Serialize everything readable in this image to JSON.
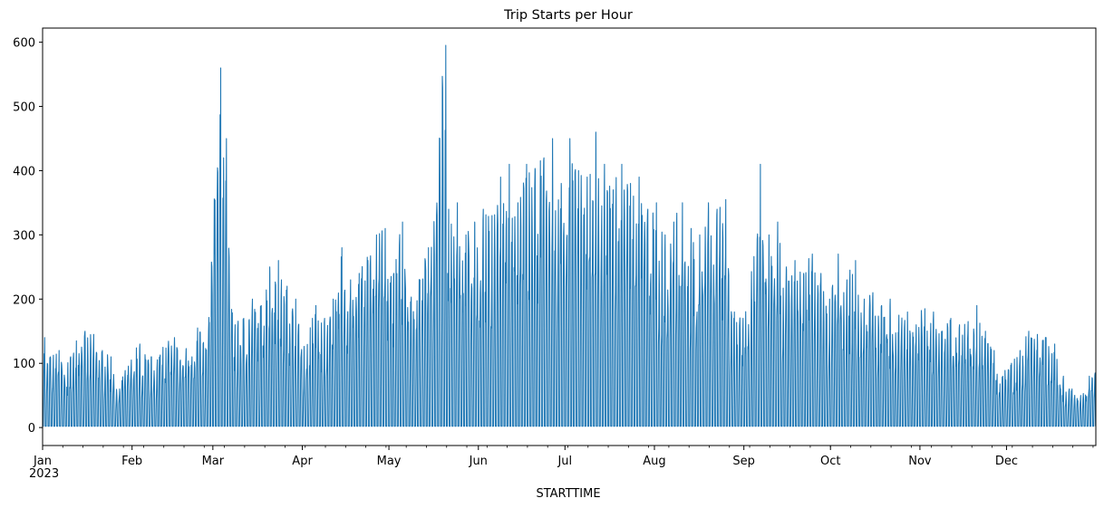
{
  "chart_data": {
    "type": "line",
    "title": "Trip Starts per Hour",
    "xlabel": "STARTTIME",
    "ylabel": "",
    "x_range": [
      "2023-01-01",
      "2023-12-31"
    ],
    "x_ticks": [
      {
        "label": "Jan",
        "date": "2023-01-01"
      },
      {
        "label": "Feb",
        "date": "2023-02-01"
      },
      {
        "label": "Mar",
        "date": "2023-03-01"
      },
      {
        "label": "Apr",
        "date": "2023-04-01"
      },
      {
        "label": "May",
        "date": "2023-05-01"
      },
      {
        "label": "Jun",
        "date": "2023-06-01"
      },
      {
        "label": "Jul",
        "date": "2023-07-01"
      },
      {
        "label": "Aug",
        "date": "2023-08-01"
      },
      {
        "label": "Sep",
        "date": "2023-09-01"
      },
      {
        "label": "Oct",
        "date": "2023-10-01"
      },
      {
        "label": "Nov",
        "date": "2023-11-01"
      },
      {
        "label": "Dec",
        "date": "2023-12-01"
      }
    ],
    "year_label": "2023",
    "ylim": [
      -28,
      622
    ],
    "y_ticks": [
      0,
      100,
      200,
      300,
      400,
      500,
      600
    ],
    "grid": false,
    "series_color": "#1f77b4",
    "series": [
      {
        "x": [
          "2023-01-01",
          "2023-01-03",
          "2023-01-06",
          "2023-01-09",
          "2023-01-12",
          "2023-01-15",
          "2023-01-18",
          "2023-01-21",
          "2023-01-24",
          "2023-01-27",
          "2023-01-30",
          "2023-02-03",
          "2023-02-07",
          "2023-02-11",
          "2023-02-15",
          "2023-02-19",
          "2023-02-23",
          "2023-02-27",
          "2023-03-03",
          "2023-03-04",
          "2023-03-05",
          "2023-03-08",
          "2023-03-11",
          "2023-03-14",
          "2023-03-17",
          "2023-03-20",
          "2023-03-23",
          "2023-03-26",
          "2023-03-29",
          "2023-04-02",
          "2023-04-05",
          "2023-04-08",
          "2023-04-11",
          "2023-04-14",
          "2023-04-17",
          "2023-04-20",
          "2023-04-23",
          "2023-04-26",
          "2023-04-29",
          "2023-05-02",
          "2023-05-05",
          "2023-05-08",
          "2023-05-11",
          "2023-05-14",
          "2023-05-17",
          "2023-05-20",
          "2023-05-21",
          "2023-05-24",
          "2023-05-27",
          "2023-05-30",
          "2023-06-02",
          "2023-06-05",
          "2023-06-08",
          "2023-06-11",
          "2023-06-14",
          "2023-06-17",
          "2023-06-20",
          "2023-06-23",
          "2023-06-26",
          "2023-06-29",
          "2023-07-02",
          "2023-07-05",
          "2023-07-08",
          "2023-07-11",
          "2023-07-14",
          "2023-07-17",
          "2023-07-20",
          "2023-07-23",
          "2023-07-26",
          "2023-07-29",
          "2023-08-01",
          "2023-08-04",
          "2023-08-07",
          "2023-08-10",
          "2023-08-13",
          "2023-08-16",
          "2023-08-19",
          "2023-08-22",
          "2023-08-25",
          "2023-08-28",
          "2023-08-31",
          "2023-09-03",
          "2023-09-06",
          "2023-09-09",
          "2023-09-12",
          "2023-09-15",
          "2023-09-18",
          "2023-09-21",
          "2023-09-24",
          "2023-09-27",
          "2023-09-30",
          "2023-10-03",
          "2023-10-06",
          "2023-10-09",
          "2023-10-12",
          "2023-10-15",
          "2023-10-18",
          "2023-10-21",
          "2023-10-24",
          "2023-10-27",
          "2023-10-30",
          "2023-11-02",
          "2023-11-05",
          "2023-11-08",
          "2023-11-11",
          "2023-11-14",
          "2023-11-17",
          "2023-11-20",
          "2023-11-23",
          "2023-11-26",
          "2023-11-29",
          "2023-12-02",
          "2023-12-05",
          "2023-12-08",
          "2023-12-11",
          "2023-12-14",
          "2023-12-17",
          "2023-12-20",
          "2023-12-23",
          "2023-12-26",
          "2023-12-29",
          "2023-12-31"
        ],
        "y": [
          140,
          110,
          120,
          90,
          135,
          150,
          145,
          120,
          110,
          60,
          95,
          130,
          110,
          125,
          140,
          120,
          155,
          140,
          560,
          420,
          450,
          160,
          170,
          200,
          180,
          250,
          260,
          220,
          200,
          120,
          190,
          170,
          200,
          280,
          230,
          240,
          260,
          300,
          310,
          240,
          320,
          200,
          230,
          280,
          330,
          595,
          340,
          350,
          300,
          320,
          340,
          330,
          390,
          410,
          350,
          410,
          400,
          420,
          450,
          380,
          450,
          400,
          390,
          460,
          410,
          370,
          410,
          380,
          390,
          340,
          350,
          300,
          320,
          350,
          310,
          300,
          350,
          340,
          355,
          180,
          170,
          200,
          410,
          300,
          320,
          250,
          260,
          240,
          270,
          240,
          200,
          270,
          230,
          260,
          200,
          210,
          190,
          200,
          175,
          180,
          160,
          185,
          180,
          150,
          170,
          160,
          165,
          190,
          150,
          120,
          80,
          100,
          120,
          150,
          145,
          140,
          130,
          80,
          60,
          50,
          80,
          85
        ]
      }
    ]
  }
}
